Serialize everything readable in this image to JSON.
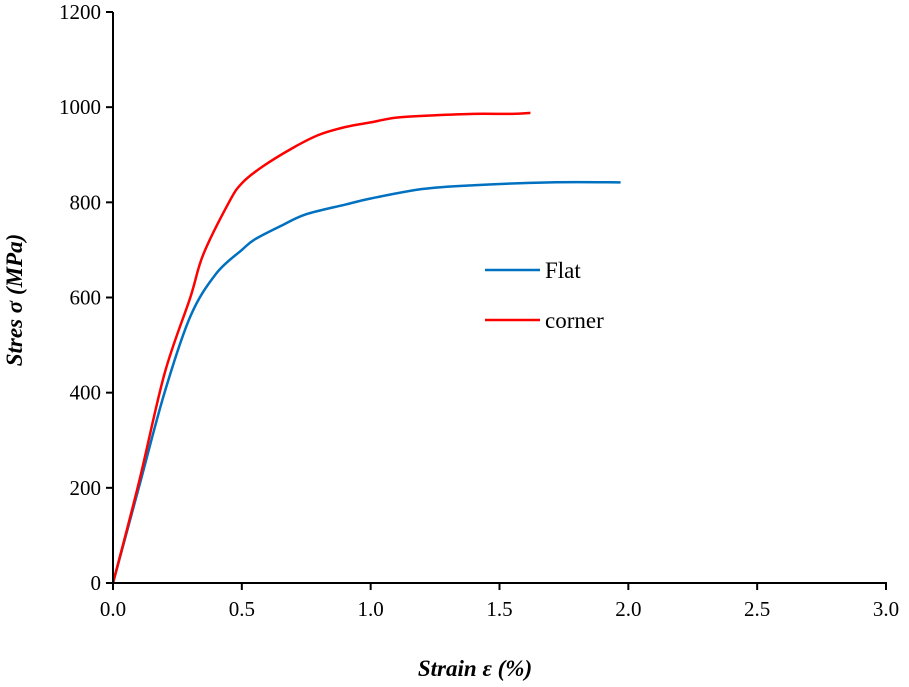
{
  "chart_data": {
    "type": "line",
    "title": "",
    "xlabel": "Strain ε (%)",
    "ylabel": "Stres σ (MPa)",
    "xlim": [
      0,
      3.0
    ],
    "ylim": [
      0,
      1200
    ],
    "xticks": [
      "0.0",
      "0.5",
      "1.0",
      "1.5",
      "2.0",
      "2.5",
      "3.0"
    ],
    "yticks": [
      "0",
      "200",
      "400",
      "600",
      "800",
      "1000",
      "1200"
    ],
    "grid": false,
    "legend_position": "center",
    "series": [
      {
        "name": "Flat",
        "color": "#0070c0",
        "x": [
          0,
          0.1,
          0.2,
          0.3,
          0.4,
          0.5,
          0.55,
          0.65,
          0.75,
          0.9,
          1.0,
          1.2,
          1.4,
          1.7,
          1.97
        ],
        "y": [
          0,
          200,
          400,
          560,
          650,
          700,
          722,
          750,
          775,
          795,
          808,
          828,
          836,
          842,
          842
        ]
      },
      {
        "name": "corner",
        "color": "#ff0000",
        "x": [
          0,
          0.1,
          0.2,
          0.3,
          0.35,
          0.45,
          0.5,
          0.58,
          0.7,
          0.8,
          0.9,
          1.0,
          1.1,
          1.25,
          1.4,
          1.55,
          1.62
        ],
        "y": [
          0,
          210,
          440,
          600,
          690,
          800,
          840,
          875,
          915,
          942,
          958,
          968,
          978,
          983,
          986,
          986,
          988
        ]
      }
    ]
  }
}
